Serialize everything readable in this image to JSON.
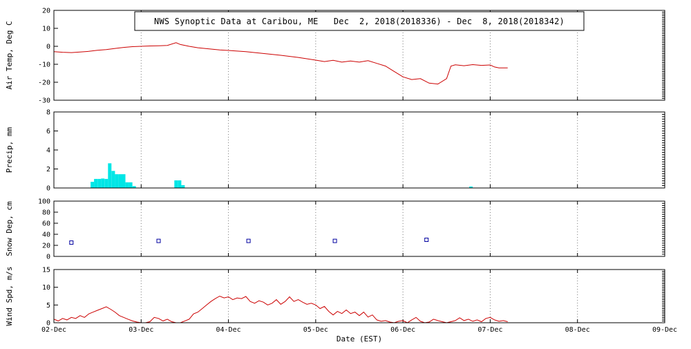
{
  "title": "NWS Synoptic Data at Caribou, ME   Dec  2, 2018(2018336) - Dec  8, 2018(2018342)",
  "xlabel": "Date (EST)",
  "x_tick_labels": [
    "02-Dec",
    "03-Dec",
    "04-Dec",
    "05-Dec",
    "06-Dec",
    "07-Dec",
    "08-Dec",
    "09-Dec"
  ],
  "colors": {
    "temp_line": "#cc0000",
    "wind_line": "#cc0000",
    "precip_bar": "#00e6e6",
    "snow_marker": "#0000a0",
    "grid": "#777777",
    "axis": "#000000"
  },
  "chart_data": [
    {
      "id": "air-temp",
      "type": "line",
      "ylabel": "Air Temp, Deg C",
      "ylim": [
        -30,
        20
      ],
      "yticks": [
        -30,
        -20,
        -10,
        0,
        10,
        20
      ],
      "y_minor_step": 1,
      "xlim": [
        0,
        7
      ],
      "x_unit": "days from 02-Dec 00:00",
      "color": "#cc0000",
      "x": [
        0,
        0.1,
        0.2,
        0.3,
        0.4,
        0.5,
        0.6,
        0.7,
        0.8,
        0.9,
        1.0,
        1.1,
        1.2,
        1.3,
        1.4,
        1.45,
        1.55,
        1.65,
        1.75,
        1.9,
        2.0,
        2.2,
        2.4,
        2.6,
        2.8,
        3.0,
        3.1,
        3.2,
        3.3,
        3.4,
        3.5,
        3.6,
        3.7,
        3.8,
        3.9,
        4.0,
        4.1,
        4.2,
        4.3,
        4.4,
        4.5,
        4.55,
        4.6,
        4.7,
        4.8,
        4.9,
        5.0,
        5.05,
        5.1,
        5.2
      ],
      "values": [
        -3,
        -3.3,
        -3.5,
        -3.2,
        -2.8,
        -2.2,
        -1.8,
        -1.2,
        -0.6,
        -0.2,
        0,
        0.2,
        0.3,
        0.5,
        2,
        1,
        0,
        -0.8,
        -1.3,
        -2,
        -2.3,
        -3,
        -4,
        -5,
        -6.2,
        -7.7,
        -8.5,
        -7.8,
        -8.8,
        -8.2,
        -8.8,
        -8,
        -9.5,
        -11,
        -14,
        -17,
        -18.5,
        -18,
        -20.5,
        -21,
        -18,
        -11,
        -10.3,
        -10.8,
        -10.2,
        -10.6,
        -10.4,
        -11.5,
        -12,
        -12
      ]
    },
    {
      "id": "precip",
      "type": "bar",
      "ylabel": "Precip, mm",
      "ylim": [
        0,
        8
      ],
      "yticks": [
        0,
        2,
        4,
        6,
        8
      ],
      "y_minor_step": 0.25,
      "xlim": [
        0,
        7
      ],
      "x_unit": "days from 02-Dec 00:00",
      "color": "#00e6e6",
      "x": [
        0.44,
        0.48,
        0.52,
        0.56,
        0.6,
        0.64,
        0.68,
        0.72,
        0.76,
        0.8,
        0.84,
        0.88,
        0.92,
        1.4,
        1.44,
        1.48,
        4.78
      ],
      "values": [
        0.65,
        0.95,
        0.95,
        1.0,
        0.95,
        2.6,
        1.8,
        1.45,
        1.45,
        1.45,
        0.6,
        0.6,
        0.2,
        0.8,
        0.8,
        0.3,
        0.15
      ]
    },
    {
      "id": "snow-depth",
      "type": "scatter",
      "marker": "open-square",
      "ylabel": "Snow Dep, cm",
      "ylim": [
        0,
        100
      ],
      "yticks": [
        0,
        20,
        40,
        60,
        80,
        100
      ],
      "y_minor_step": 4,
      "xlim": [
        0,
        7
      ],
      "x_unit": "days from 02-Dec 00:00",
      "color": "#0000a0",
      "x": [
        0.2,
        1.2,
        2.23,
        3.22,
        4.27
      ],
      "values": [
        25,
        28,
        28,
        28,
        30
      ]
    },
    {
      "id": "wind-speed",
      "type": "line",
      "ylabel": "Wind Spd, m/s",
      "ylim": [
        0,
        15
      ],
      "yticks": [
        0,
        5,
        10,
        15
      ],
      "y_minor_step": 0.5,
      "xlim": [
        0,
        7
      ],
      "x_unit": "days from 02-Dec 00:00",
      "color": "#cc0000",
      "x": [
        0,
        0.05,
        0.1,
        0.15,
        0.2,
        0.25,
        0.3,
        0.35,
        0.4,
        0.45,
        0.5,
        0.55,
        0.6,
        0.65,
        0.7,
        0.75,
        0.8,
        0.85,
        0.9,
        0.95,
        1.0,
        1.05,
        1.1,
        1.15,
        1.2,
        1.25,
        1.3,
        1.35,
        1.4,
        1.45,
        1.5,
        1.55,
        1.6,
        1.65,
        1.7,
        1.75,
        1.8,
        1.85,
        1.9,
        1.95,
        2.0,
        2.05,
        2.1,
        2.15,
        2.2,
        2.25,
        2.3,
        2.35,
        2.4,
        2.45,
        2.5,
        2.55,
        2.6,
        2.65,
        2.7,
        2.75,
        2.8,
        2.85,
        2.9,
        2.95,
        3.0,
        3.05,
        3.1,
        3.15,
        3.2,
        3.25,
        3.3,
        3.35,
        3.4,
        3.45,
        3.5,
        3.55,
        3.6,
        3.65,
        3.7,
        3.75,
        3.8,
        3.85,
        3.9,
        3.95,
        4.0,
        4.05,
        4.1,
        4.15,
        4.2,
        4.25,
        4.3,
        4.35,
        4.4,
        4.45,
        4.5,
        4.55,
        4.6,
        4.65,
        4.7,
        4.75,
        4.8,
        4.85,
        4.9,
        4.95,
        5.0,
        5.05,
        5.1,
        5.15,
        5.2
      ],
      "values": [
        1,
        0.5,
        1.2,
        0.8,
        1.5,
        1.2,
        2,
        1.5,
        2.5,
        3,
        3.5,
        4,
        4.5,
        3.8,
        3,
        2,
        1.5,
        1,
        0.5,
        0.2,
        0,
        0,
        0.3,
        1.5,
        1.2,
        0.5,
        1,
        0.3,
        0,
        0,
        0.5,
        1,
        2.5,
        3,
        4,
        5,
        6,
        6.8,
        7.5,
        7,
        7.3,
        6.5,
        7,
        6.8,
        7.4,
        6,
        5.5,
        6.2,
        5.8,
        5,
        5.5,
        6.5,
        5.2,
        6,
        7.3,
        6,
        6.5,
        5.8,
        5.2,
        5.5,
        5,
        4,
        4.6,
        3.2,
        2.2,
        3.2,
        2.6,
        3.6,
        2.6,
        3,
        2,
        3,
        1.6,
        2.2,
        0.8,
        0.4,
        0.6,
        0.2,
        0,
        0.4,
        0.6,
        0,
        0.8,
        1.5,
        0.4,
        0,
        0.2,
        1,
        0.6,
        0.3,
        0,
        0.3,
        0.6,
        1.4,
        0.6,
        1,
        0.4,
        0.8,
        0.3,
        1.2,
        1.5,
        0.8,
        0.4,
        0.6,
        0.3
      ]
    }
  ]
}
